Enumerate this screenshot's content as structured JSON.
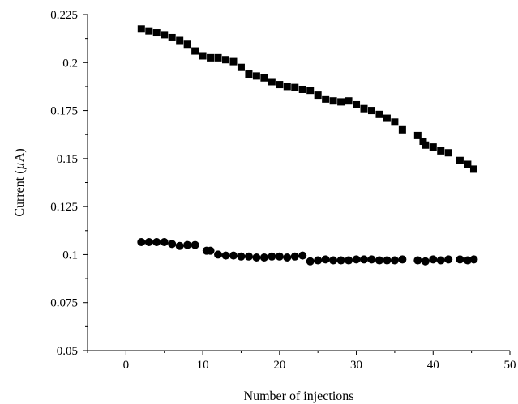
{
  "chart_data": {
    "type": "scatter",
    "title": "",
    "xlabel": "Number of injections",
    "ylabel": "Current (µA)",
    "ylabel_parts": {
      "before": "Current (",
      "symbol": "µ",
      "after": "A)"
    },
    "xlim": [
      -5,
      50
    ],
    "ylim": [
      0.05,
      0.225
    ],
    "xticks": [
      0,
      10,
      20,
      30,
      40,
      50
    ],
    "xtick_labels": [
      "0",
      "10",
      "20",
      "30",
      "40",
      "50"
    ],
    "yticks": [
      0.05,
      0.075,
      0.1,
      0.125,
      0.15,
      0.175,
      0.2,
      0.225
    ],
    "ytick_labels": [
      "0.05",
      "0.075",
      "0.1",
      "0.125",
      "0.15",
      "0.175",
      "0.2",
      "0.225"
    ],
    "grid": false,
    "series": [
      {
        "marker": "square",
        "color": "#000000",
        "x": [
          2,
          3,
          4,
          5,
          6,
          7,
          8,
          9,
          10,
          11,
          12,
          13,
          14,
          15,
          16,
          17,
          18,
          19,
          20,
          21,
          22,
          23,
          24,
          25,
          26,
          27,
          28,
          29,
          30,
          31,
          32,
          33,
          34,
          35,
          36,
          38,
          38.7,
          39,
          40,
          41,
          42,
          43.5,
          44.5,
          45.3
        ],
        "y": [
          0.2175,
          0.2165,
          0.2155,
          0.2145,
          0.213,
          0.2115,
          0.2095,
          0.206,
          0.2035,
          0.2025,
          0.2025,
          0.2015,
          0.2005,
          0.1975,
          0.194,
          0.193,
          0.192,
          0.19,
          0.1885,
          0.1875,
          0.187,
          0.186,
          0.1855,
          0.183,
          0.181,
          0.18,
          0.1795,
          0.18,
          0.178,
          0.176,
          0.175,
          0.173,
          0.171,
          0.169,
          0.165,
          0.162,
          0.159,
          0.157,
          0.156,
          0.154,
          0.153,
          0.149,
          0.147,
          0.1445
        ]
      },
      {
        "marker": "circle",
        "color": "#000000",
        "x": [
          2,
          3,
          4,
          5,
          6,
          7,
          8,
          9,
          10.5,
          11,
          12,
          13,
          14,
          15,
          16,
          17,
          18,
          19,
          20,
          21,
          22,
          23,
          24,
          25,
          26,
          27,
          28,
          29,
          30,
          31,
          32,
          33,
          34,
          35,
          36,
          38,
          39,
          40,
          41,
          42,
          43.5,
          44.5,
          45.3
        ],
        "y": [
          0.1065,
          0.1065,
          0.1065,
          0.1065,
          0.1055,
          0.1045,
          0.105,
          0.105,
          0.102,
          0.102,
          0.1,
          0.0995,
          0.0995,
          0.099,
          0.099,
          0.0985,
          0.0985,
          0.099,
          0.099,
          0.0985,
          0.099,
          0.0995,
          0.0965,
          0.097,
          0.0975,
          0.097,
          0.097,
          0.097,
          0.0975,
          0.0975,
          0.0975,
          0.097,
          0.097,
          0.097,
          0.0975,
          0.097,
          0.0965,
          0.0975,
          0.097,
          0.0975,
          0.0975,
          0.097,
          0.0975
        ]
      }
    ]
  }
}
